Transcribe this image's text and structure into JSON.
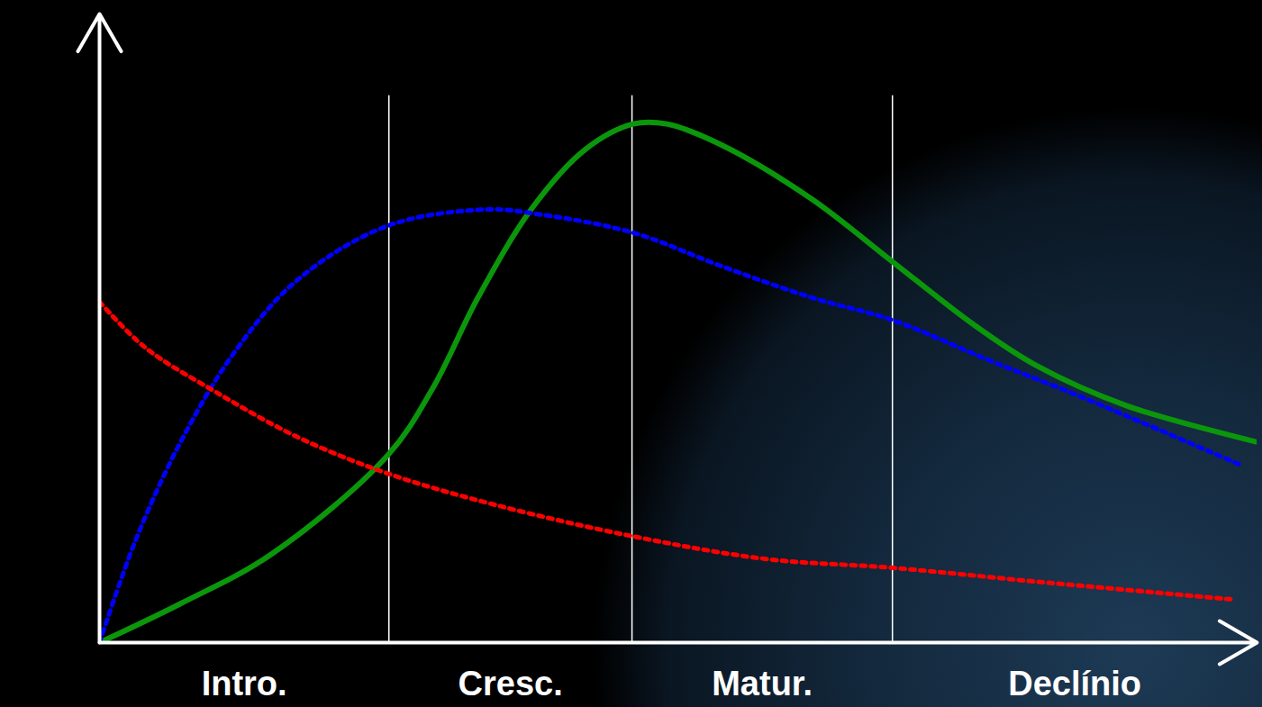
{
  "chart_data": {
    "type": "line",
    "xlim": [
      0,
      100
    ],
    "ylim": [
      0,
      100
    ],
    "tick_labels": false,
    "grid": false,
    "stages": [
      {
        "label": "Intro.",
        "start": 0,
        "end": 25
      },
      {
        "label": "Cresc.",
        "start": 25,
        "end": 46
      },
      {
        "label": "Matur.",
        "start": 46,
        "end": 68.5
      },
      {
        "label": "Declínio",
        "start": 68.5,
        "end": 100
      }
    ],
    "series": [
      {
        "color": "#0b960b",
        "line_style": "solid",
        "x": [
          0,
          7.0,
          14.8,
          24.9,
          28.8,
          32.7,
          37.4,
          42.0,
          46.1,
          49.0,
          53.7,
          61.5,
          68.5,
          75.5,
          80.9,
          88.7,
          100
        ],
        "values": [
          0,
          6.2,
          14.0,
          29.8,
          40.5,
          54.9,
          69.2,
          78.5,
          82.5,
          82.5,
          79.2,
          70.6,
          60.6,
          50.6,
          44.1,
          37.7,
          31.9
        ]
      },
      {
        "color": "#0000ff",
        "line_style": "dotted",
        "x": [
          0,
          3.1,
          7.0,
          11.7,
          17.1,
          24.9,
          33.5,
          38.1,
          46.1,
          53.7,
          61.5,
          68.5,
          77.0,
          84.8,
          98.4
        ],
        "values": [
          0,
          16.2,
          31.9,
          46.3,
          57.7,
          66.3,
          68.9,
          68.1,
          65.2,
          59.9,
          54.9,
          51.3,
          44.8,
          39.1,
          28.4
        ]
      },
      {
        "color": "#ff0000",
        "line_style": "dotted",
        "x": [
          0,
          3.9,
          10.1,
          17.1,
          24.9,
          34.2,
          46.1,
          57.6,
          68.5,
          80.9,
          97.7
        ],
        "values": [
          54.2,
          47.0,
          39.8,
          32.7,
          26.9,
          21.9,
          16.9,
          13.3,
          11.9,
          9.7,
          6.9
        ]
      }
    ]
  }
}
